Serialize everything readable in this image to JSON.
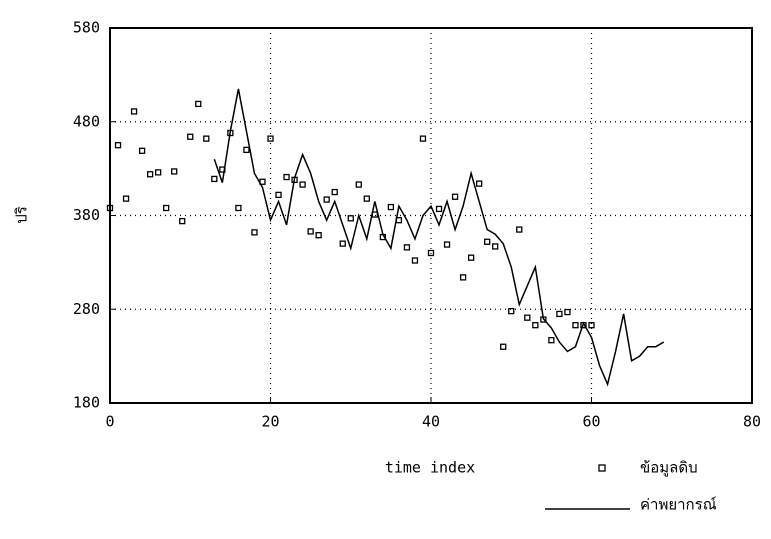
{
  "chart_data": {
    "type": "line",
    "xlabel": "time index",
    "ylabel": "ปริ",
    "xlim": [
      0,
      80
    ],
    "ylim": [
      180,
      580
    ],
    "xticks": [
      0,
      20,
      40,
      60,
      80
    ],
    "yticks": [
      180,
      280,
      380,
      480,
      580
    ],
    "grid": true,
    "legend": "lower right",
    "series": [
      {
        "name": "ข้อมูลดิบ",
        "kind": "scatter",
        "marker": "square",
        "color": "#000000",
        "x": [
          0,
          1,
          2,
          3,
          4,
          5,
          6,
          7,
          8,
          9,
          10,
          11,
          12,
          13,
          14,
          15,
          16,
          17,
          18,
          19,
          20,
          21,
          22,
          23,
          24,
          25,
          26,
          27,
          28,
          29,
          30,
          31,
          32,
          33,
          34,
          35,
          36,
          37,
          38,
          39,
          40,
          41,
          42,
          43,
          44,
          45,
          46,
          47,
          48,
          49,
          50,
          51,
          52,
          53,
          54,
          55,
          56,
          57,
          58,
          59,
          60
        ],
        "values": [
          388,
          455,
          398,
          491,
          449,
          424,
          426,
          388,
          427,
          374,
          464,
          499,
          462,
          419,
          429,
          468,
          388,
          450,
          362,
          416,
          462,
          402,
          421,
          418,
          413,
          363,
          359,
          397,
          405,
          350,
          377,
          413,
          398,
          381,
          357,
          389,
          375,
          346,
          332,
          462,
          340,
          387,
          349,
          400,
          314,
          335,
          414,
          352,
          347,
          240,
          278,
          365,
          271,
          263,
          269,
          247,
          275,
          277,
          263,
          263,
          263
        ]
      },
      {
        "name": "ค่าพยากรณ์",
        "kind": "line",
        "color": "#000000",
        "x": [
          13,
          14,
          15,
          16,
          17,
          18,
          19,
          20,
          21,
          22,
          23,
          24,
          25,
          26,
          27,
          28,
          29,
          30,
          31,
          32,
          33,
          34,
          35,
          36,
          37,
          38,
          39,
          40,
          41,
          42,
          43,
          44,
          45,
          46,
          47,
          48,
          49,
          50,
          51,
          52,
          53,
          54,
          55,
          56,
          57,
          58,
          59,
          60,
          61,
          62,
          63,
          64,
          65,
          66,
          67,
          68,
          69
        ],
        "values": [
          440,
          415,
          470,
          515,
          470,
          425,
          410,
          375,
          395,
          370,
          420,
          445,
          425,
          395,
          375,
          395,
          370,
          345,
          380,
          355,
          395,
          360,
          345,
          390,
          375,
          355,
          380,
          390,
          370,
          395,
          365,
          390,
          425,
          395,
          365,
          360,
          350,
          325,
          285,
          305,
          325,
          270,
          260,
          245,
          235,
          240,
          265,
          250,
          220,
          200,
          235,
          275,
          225,
          230,
          240,
          240,
          245
        ]
      }
    ]
  }
}
